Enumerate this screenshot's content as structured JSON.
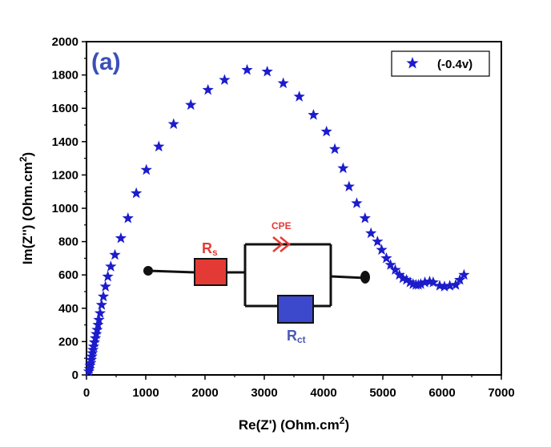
{
  "chart_data": {
    "type": "scatter",
    "panel_label": "(a)",
    "xlabel": "Re(Z') (Ohm.cm",
    "xlabel_sup": "2",
    "xlabel_end": ")",
    "ylabel": "Im(Z'') (Ohm.cm",
    "ylabel_sup": "2",
    "ylabel_end": ")",
    "xlim": [
      0,
      7000
    ],
    "ylim": [
      0,
      2000
    ],
    "xticks": [
      0,
      1000,
      2000,
      3000,
      4000,
      5000,
      6000,
      7000
    ],
    "yticks": [
      0,
      200,
      400,
      600,
      800,
      1000,
      1200,
      1400,
      1600,
      1800,
      2000
    ],
    "xtick_labels": [
      "0",
      "1000",
      "2000",
      "3000",
      "4000",
      "5000",
      "6000",
      "7000"
    ],
    "ytick_labels": [
      "0",
      "200",
      "400",
      "600",
      "800",
      "1000",
      "1200",
      "1400",
      "1600",
      "1800",
      "2000"
    ],
    "grid": false,
    "legend_position": "top-right",
    "marker_color": "#1c1ccc",
    "series": [
      {
        "name": "(-0.4v)",
        "x": [
          40,
          50,
          60,
          70,
          80,
          90,
          100,
          110,
          120,
          135,
          150,
          165,
          180,
          195,
          210,
          230,
          255,
          285,
          320,
          360,
          410,
          480,
          580,
          700,
          840,
          1010,
          1220,
          1470,
          1760,
          2050,
          2330,
          2710,
          3050,
          3320,
          3590,
          3830,
          4050,
          4190,
          4330,
          4430,
          4560,
          4700,
          4800,
          4910,
          4980,
          5060,
          5130,
          5210,
          5280,
          5340,
          5400,
          5460,
          5510,
          5560,
          5600,
          5640,
          5710,
          5790,
          5850,
          5960,
          6040,
          6130,
          6230,
          6300,
          6370
        ],
        "y": [
          20,
          35,
          55,
          70,
          90,
          110,
          130,
          150,
          170,
          195,
          220,
          245,
          270,
          300,
          330,
          370,
          420,
          470,
          530,
          590,
          650,
          720,
          820,
          940,
          1090,
          1230,
          1370,
          1505,
          1620,
          1710,
          1770,
          1830,
          1820,
          1750,
          1670,
          1560,
          1460,
          1355,
          1240,
          1130,
          1030,
          940,
          850,
          800,
          750,
          700,
          660,
          630,
          600,
          580,
          570,
          555,
          545,
          540,
          540,
          545,
          555,
          560,
          555,
          535,
          530,
          535,
          540,
          570,
          600
        ]
      }
    ],
    "circuit": {
      "rs_label": "R",
      "rs_sub": "s",
      "rct_label": "R",
      "rct_sub": "ct",
      "cpe_label": "CPE",
      "rs_color": "#e43a35",
      "rct_color": "#3c49cc",
      "cpe_color": "#e43a35",
      "label_color": "#4a59b8"
    }
  }
}
